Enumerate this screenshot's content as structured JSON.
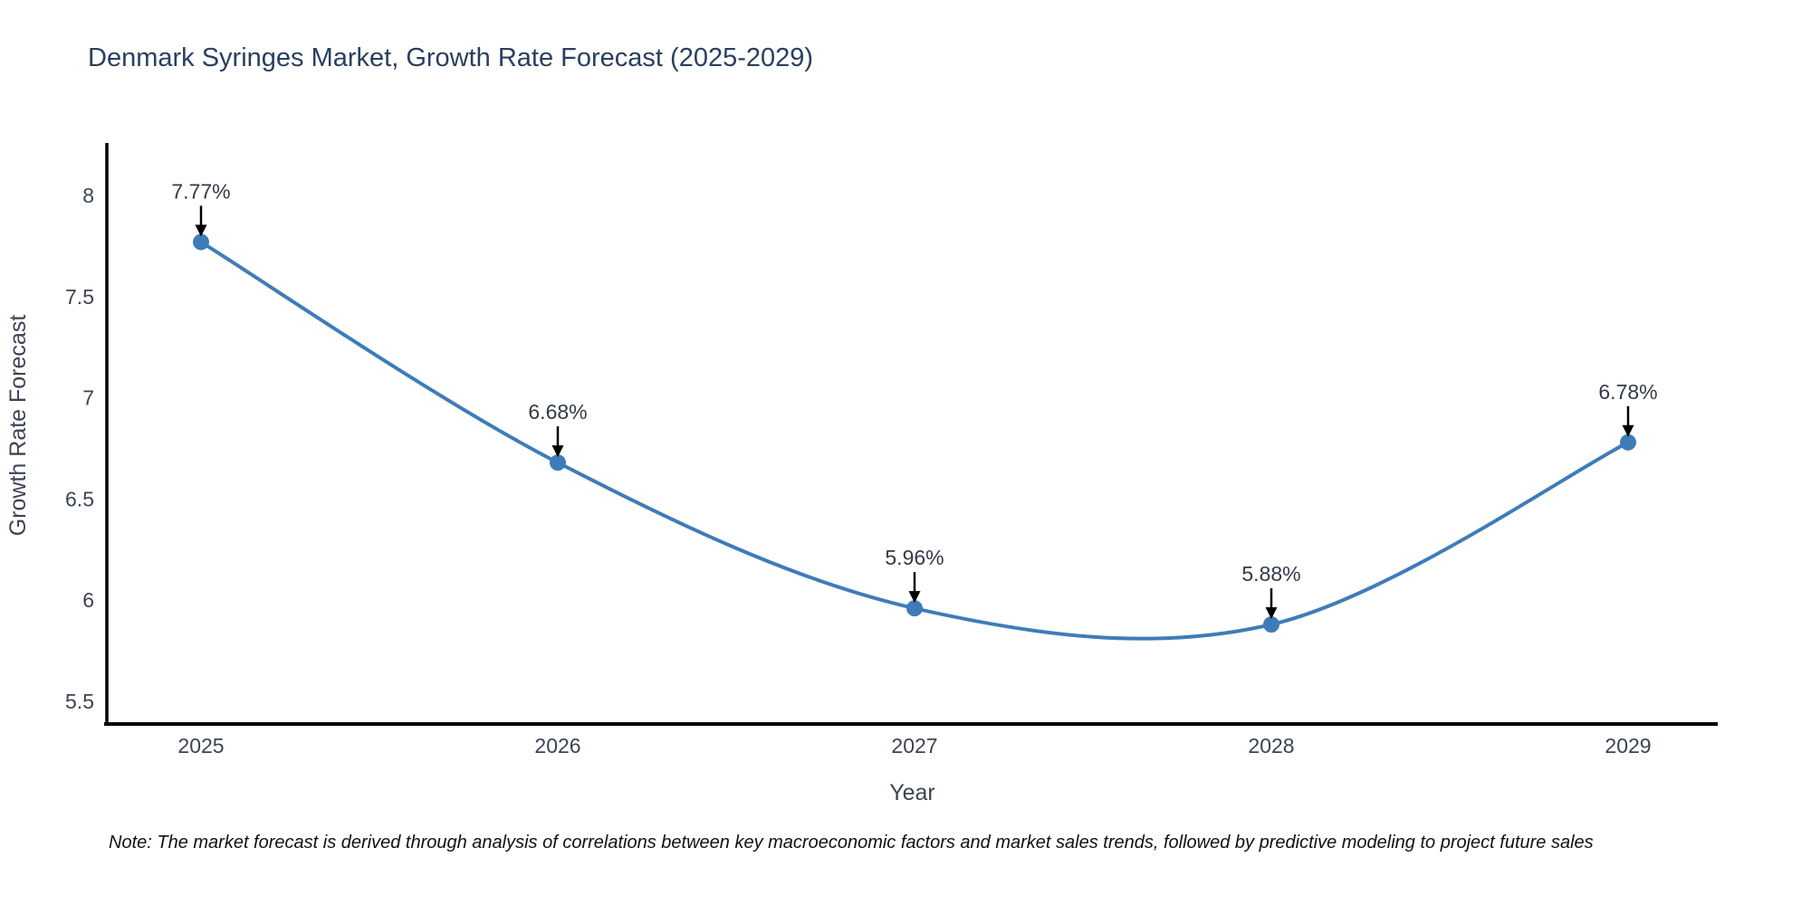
{
  "title": "Denmark Syringes Market, Growth Rate Forecast (2025-2029)",
  "note": "Note: The market forecast is derived through analysis of correlations between key macroeconomic factors and market sales trends, followed by predictive modeling to project future sales",
  "chart_data": {
    "type": "line",
    "title": "Denmark Syringes Market, Growth Rate Forecast (2025-2029)",
    "xlabel": "Year",
    "ylabel": "Growth Rate Forecast",
    "categories": [
      "2025",
      "2026",
      "2027",
      "2028",
      "2029"
    ],
    "series": [
      {
        "name": "Growth Rate Forecast",
        "values": [
          7.77,
          6.68,
          5.96,
          5.88,
          6.78
        ],
        "point_labels": [
          "7.77%",
          "6.68%",
          "5.96%",
          "5.88%",
          "6.78%"
        ]
      }
    ],
    "line_shape": "spline",
    "markers": true,
    "grid": false,
    "legend": "none",
    "yticks": [
      8,
      7.5,
      7,
      6.5,
      6,
      5.5
    ],
    "ylim": [
      5.38,
      8.26
    ],
    "colors": {
      "line": "#3E7CB9",
      "marker": "#3E7CB9",
      "axis": "#000000",
      "title": "#2a3f5f",
      "tick_label": "#3c4352",
      "annotation_text": "#333a46",
      "annotation_arrow": "#000000"
    }
  }
}
